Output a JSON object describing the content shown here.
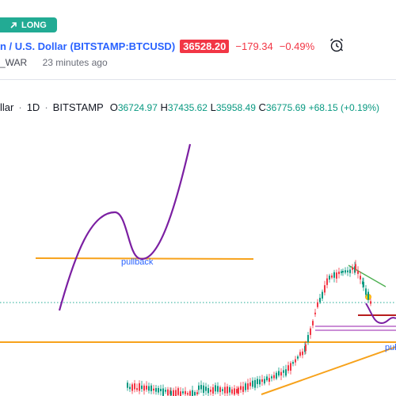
{
  "badge": {
    "label": "LONG"
  },
  "header": {
    "symbol_name": "n / U.S. Dollar",
    "ticker": "(BITSTAMP:BTCUSD)",
    "price": "36528.20",
    "change": "−179.34",
    "change_pct": "−0.49%",
    "author": "_WAR",
    "time_ago": "23 minutes ago"
  },
  "legend": {
    "symbol": "llar",
    "interval": "1D",
    "exchange": "BITSTAMP",
    "o_label": "O",
    "o": "36724.97",
    "h_label": "H",
    "h": "37435.62",
    "l_label": "L",
    "l": "35958.49",
    "c_label": "C",
    "c": "36775.69",
    "change": "+68.15 (+0.19%)"
  },
  "annotations": {
    "pullback": "pullback",
    "pull_right": "pul"
  },
  "colors": {
    "long": "#22ab94",
    "down": "#f23645",
    "up": "#089981",
    "accent": "#2962ff",
    "drawing": "#7b1fa2",
    "level": "#f7a21b"
  },
  "icons": {
    "badge": "arrow-up-right-icon",
    "alert": "alarm-clock-icon"
  }
}
